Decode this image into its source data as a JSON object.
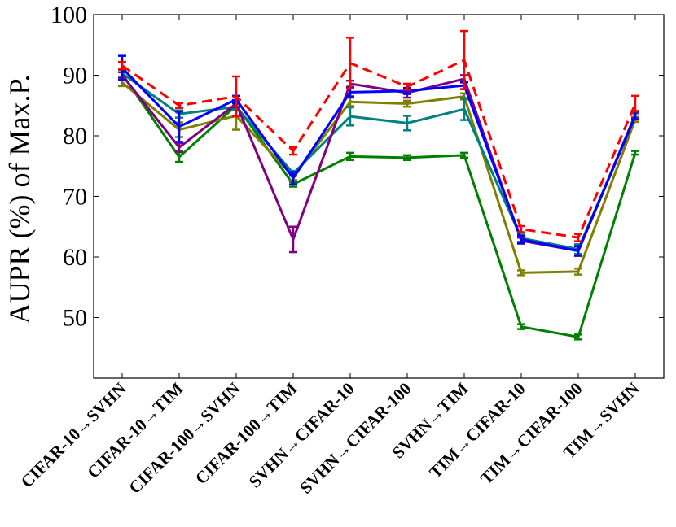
{
  "chart_data": {
    "type": "line",
    "title": "",
    "xlabel": "",
    "ylabel": "AUPR (%) of Max.P.",
    "ylim": [
      40,
      100
    ],
    "yticks": [
      50,
      60,
      70,
      80,
      90,
      100
    ],
    "grid": false,
    "legend": "none",
    "categories": [
      "CIFAR-10→SVHN",
      "CIFAR-10→TIM",
      "CIFAR-100→SVHN",
      "CIFAR-100→TIM",
      "SVHN→CIFAR-10",
      "SVHN→CIFAR-100",
      "SVHN→TIM",
      "TIM→CIFAR-10",
      "TIM→CIFAR-100",
      "TIM→SVHN"
    ],
    "series": [
      {
        "color": "#008000",
        "dashed": false,
        "values": [
          90.2,
          76.5,
          85.0,
          72.0,
          76.6,
          76.4,
          76.8,
          48.5,
          46.8,
          77.2
        ],
        "errors": [
          0.8,
          0.8,
          0.5,
          0.4,
          0.6,
          0.4,
          0.4,
          0.4,
          0.4,
          0.3
        ]
      },
      {
        "color": "#808000",
        "dashed": false,
        "values": [
          88.8,
          81.0,
          83.3,
          73.3,
          85.6,
          85.3,
          86.5,
          57.4,
          57.6,
          82.7
        ],
        "errors": [
          0.6,
          1.2,
          2.3,
          0.6,
          0.7,
          0.5,
          0.5,
          0.4,
          0.5,
          0.4
        ]
      },
      {
        "color": "#008080",
        "dashed": false,
        "values": [
          90.3,
          83.6,
          84.8,
          73.8,
          83.2,
          82.1,
          84.4,
          63.1,
          61.3,
          83.2
        ],
        "errors": [
          0.6,
          0.6,
          0.5,
          0.4,
          1.5,
          1.2,
          1.8,
          0.6,
          0.8,
          0.5
        ]
      },
      {
        "color": "#800080",
        "dashed": false,
        "values": [
          90.0,
          78.1,
          85.3,
          62.9,
          88.6,
          87.1,
          89.4,
          62.7,
          61.0,
          83.5
        ],
        "errors": [
          0.5,
          0.7,
          0.6,
          2.1,
          0.5,
          0.8,
          0.6,
          0.5,
          0.8,
          0.6
        ]
      },
      {
        "color": "#0000ff",
        "dashed": false,
        "values": [
          91.2,
          81.5,
          86.0,
          73.0,
          87.2,
          87.4,
          88.3,
          62.9,
          61.0,
          83.3
        ],
        "errors": [
          2.0,
          2.5,
          0.6,
          1.0,
          0.7,
          0.5,
          0.6,
          0.6,
          0.8,
          0.6
        ]
      },
      {
        "color": "#ff0000",
        "dashed": true,
        "values": [
          91.6,
          85.0,
          86.5,
          77.5,
          92.0,
          88.1,
          92.5,
          64.6,
          63.2,
          85.3
        ],
        "errors": [
          0.6,
          0.4,
          3.3,
          0.6,
          4.2,
          0.5,
          4.8,
          0.5,
          0.6,
          1.3
        ]
      }
    ]
  }
}
